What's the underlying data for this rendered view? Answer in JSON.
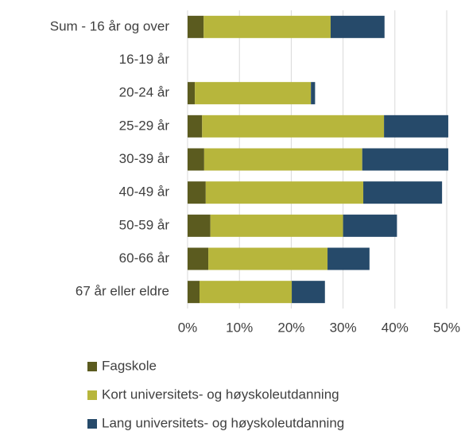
{
  "chart_data": {
    "type": "stacked_barh",
    "categories": [
      "Sum - 16 år og over",
      "16-19 år",
      "20-24 år",
      "25-29 år",
      "30-39 år",
      "40-49 år",
      "50-59 år",
      "60-66 år",
      "67 år eller eldre"
    ],
    "series": [
      {
        "name": "Fagskole",
        "color": "#5b5b1f",
        "values": [
          3.1,
          0,
          1.4,
          2.8,
          3.2,
          3.5,
          4.4,
          4.0,
          2.3
        ]
      },
      {
        "name": "Kort universitets- og høyskoleutdanning",
        "color": "#b7b63c",
        "values": [
          24.5,
          0,
          22.4,
          35.1,
          30.5,
          30.4,
          25.6,
          23.0,
          17.8
        ]
      },
      {
        "name": "Lang universitets- og høyskoleutdanning",
        "color": "#264a6a",
        "values": [
          10.4,
          0,
          0.8,
          12.4,
          16.6,
          15.2,
          10.4,
          8.1,
          6.4
        ]
      }
    ],
    "xlim": [
      0,
      50
    ],
    "xticks": [
      {
        "value": 0,
        "label": "0%"
      },
      {
        "value": 10,
        "label": "10%"
      },
      {
        "value": 20,
        "label": "20%"
      },
      {
        "value": 30,
        "label": "30%"
      },
      {
        "value": 40,
        "label": "40%"
      },
      {
        "value": 50,
        "label": "50%"
      }
    ],
    "grid": true
  }
}
